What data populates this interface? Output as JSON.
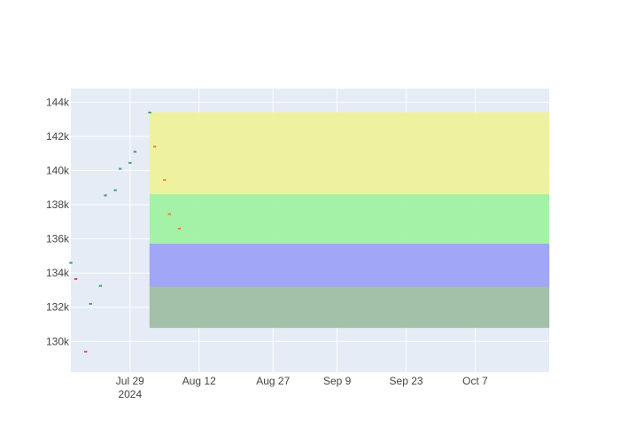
{
  "chart_data": {
    "type": "ohlc",
    "x_axis": {
      "type": "date",
      "range": [
        "2024-07-17",
        "2024-10-22"
      ],
      "ticks": [
        {
          "date": "2024-07-29",
          "label": "Jul 29",
          "sublabel": "2024"
        },
        {
          "date": "2024-08-12",
          "label": "Aug 12"
        },
        {
          "date": "2024-08-27",
          "label": "Aug 27"
        },
        {
          "date": "2024-09-09",
          "label": "Sep 9"
        },
        {
          "date": "2024-09-23",
          "label": "Sep 23"
        },
        {
          "date": "2024-10-07",
          "label": "Oct 7"
        }
      ]
    },
    "y_axis": {
      "range": [
        128200,
        144800
      ],
      "ticks": [
        {
          "value": 130000,
          "label": "130k"
        },
        {
          "value": 132000,
          "label": "132k"
        },
        {
          "value": 134000,
          "label": "134k"
        },
        {
          "value": 136000,
          "label": "136k"
        },
        {
          "value": 138000,
          "label": "138k"
        },
        {
          "value": 140000,
          "label": "140k"
        },
        {
          "value": 142000,
          "label": "142k"
        },
        {
          "value": 144000,
          "label": "144k"
        }
      ]
    },
    "grid": true,
    "legend": "none",
    "bands": [
      {
        "start": "2024-08-02",
        "y0": 138600,
        "y1": 143400,
        "color": "#eef29a"
      },
      {
        "start": "2024-08-02",
        "y0": 135700,
        "y1": 138600,
        "color": "#a0f2a2"
      },
      {
        "start": "2024-08-02",
        "y0": 133200,
        "y1": 135700,
        "color": "#9ea2f6"
      },
      {
        "start": "2024-08-02",
        "y0": 130800,
        "y1": 133200,
        "color": "#9fbea3"
      }
    ],
    "bars": [
      {
        "date": "2024-07-17",
        "open": 134600,
        "high": 134600,
        "low": 134600,
        "close": 134600,
        "color": "#3d9970"
      },
      {
        "date": "2024-07-18",
        "open": 133650,
        "high": 133650,
        "low": 133650,
        "close": 133650,
        "color": "#e8453c"
      },
      {
        "date": "2024-07-20",
        "open": 129400,
        "high": 129400,
        "low": 129400,
        "close": 129400,
        "color": "#e8453c"
      },
      {
        "date": "2024-07-21",
        "open": 132200,
        "high": 132200,
        "low": 132200,
        "close": 132200,
        "color": "#3d9970"
      },
      {
        "date": "2024-07-23",
        "open": 133250,
        "high": 133250,
        "low": 133250,
        "close": 133250,
        "color": "#3d9970"
      },
      {
        "date": "2024-07-24",
        "open": 138550,
        "high": 138550,
        "low": 138550,
        "close": 138550,
        "color": "#3d9970"
      },
      {
        "date": "2024-07-26",
        "open": 138850,
        "high": 138850,
        "low": 138850,
        "close": 138850,
        "color": "#3d9970"
      },
      {
        "date": "2024-07-27",
        "open": 140100,
        "high": 140100,
        "low": 140100,
        "close": 140100,
        "color": "#3d9970"
      },
      {
        "date": "2024-07-29",
        "open": 140450,
        "high": 140450,
        "low": 140450,
        "close": 140450,
        "color": "#3d9970"
      },
      {
        "date": "2024-07-30",
        "open": 141100,
        "high": 141100,
        "low": 141100,
        "close": 141100,
        "color": "#3d9970"
      },
      {
        "date": "2024-08-02",
        "open": 143400,
        "high": 143400,
        "low": 143400,
        "close": 143400,
        "color": "#3d9970"
      },
      {
        "date": "2024-08-03",
        "open": 141400,
        "high": 141400,
        "low": 141400,
        "close": 141400,
        "color": "#f07f2a"
      },
      {
        "date": "2024-08-05",
        "open": 139450,
        "high": 139450,
        "low": 139450,
        "close": 139450,
        "color": "#f07f2a"
      },
      {
        "date": "2024-08-06",
        "open": 137450,
        "high": 137450,
        "low": 137450,
        "close": 137450,
        "color": "#f07f2a"
      },
      {
        "date": "2024-08-08",
        "open": 136600,
        "high": 136600,
        "low": 136600,
        "close": 136600,
        "color": "#f07f2a"
      }
    ],
    "colors": {
      "plot_bg": "#e5ecf6",
      "grid": "#ffffff",
      "paper": "#ffffff"
    }
  }
}
